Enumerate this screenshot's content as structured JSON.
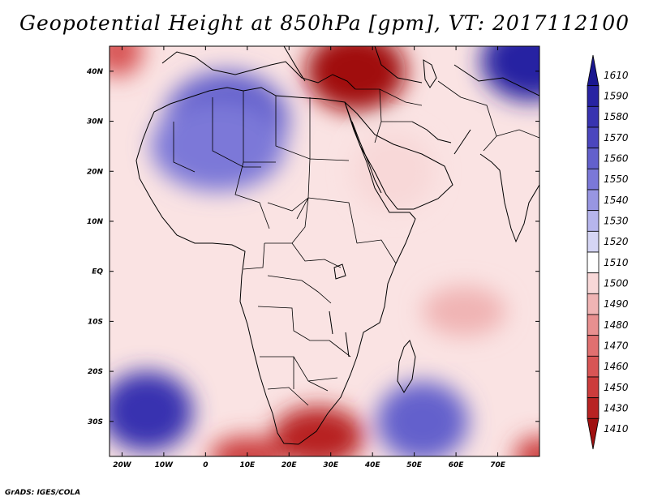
{
  "title": "Geopotential Height at 850hPa [gpm], VT: 2017112100",
  "footer": "GrADS: IGES/COLA",
  "map": {
    "lon_range": [
      -23,
      80
    ],
    "lat_range": [
      -37,
      45
    ],
    "x_ticks": [
      {
        "lon": -20,
        "label": "20W"
      },
      {
        "lon": -10,
        "label": "10W"
      },
      {
        "lon": 0,
        "label": "0"
      },
      {
        "lon": 10,
        "label": "10E"
      },
      {
        "lon": 20,
        "label": "20E"
      },
      {
        "lon": 30,
        "label": "30E"
      },
      {
        "lon": 40,
        "label": "40E"
      },
      {
        "lon": 50,
        "label": "50E"
      },
      {
        "lon": 60,
        "label": "60E"
      },
      {
        "lon": 70,
        "label": "70E"
      }
    ],
    "y_ticks": [
      {
        "lat": 40,
        "label": "40N"
      },
      {
        "lat": 30,
        "label": "30N"
      },
      {
        "lat": 20,
        "label": "20N"
      },
      {
        "lat": 10,
        "label": "10N"
      },
      {
        "lat": 0,
        "label": "EQ"
      },
      {
        "lat": -10,
        "label": "10S"
      },
      {
        "lat": -20,
        "label": "20S"
      },
      {
        "lat": -30,
        "label": "30S"
      }
    ],
    "field_features": [
      {
        "name": "low-east-mediterranean",
        "lon": 36,
        "lat": 40,
        "value": 1410,
        "rx": 12,
        "ry": 8
      },
      {
        "name": "low-northwest-corner",
        "lon": -21,
        "lat": 44,
        "value": 1460,
        "rx": 6,
        "ry": 5
      },
      {
        "name": "high-north-africa",
        "lon": 5,
        "lat": 30,
        "value": 1560,
        "rx": 15,
        "ry": 10
      },
      {
        "name": "high-sahara",
        "lon": 3,
        "lat": 25,
        "value": 1550,
        "rx": 16,
        "ry": 9
      },
      {
        "name": "high-northeast-corner",
        "lon": 78,
        "lat": 42,
        "value": 1590,
        "rx": 12,
        "ry": 8
      },
      {
        "name": "high-south-atlantic",
        "lon": -14,
        "lat": -28,
        "value": 1580,
        "rx": 11,
        "ry": 8
      },
      {
        "name": "high-south-indian",
        "lon": 52,
        "lat": -30,
        "value": 1560,
        "rx": 11,
        "ry": 8
      },
      {
        "name": "low-southern-africa",
        "lon": 27,
        "lat": -33,
        "value": 1430,
        "rx": 11,
        "ry": 6
      },
      {
        "name": "low-southwest-corner",
        "lon": 10,
        "lat": -37,
        "value": 1450,
        "rx": 9,
        "ry": 4
      },
      {
        "name": "low-southeast-corner",
        "lon": 80,
        "lat": -37,
        "value": 1450,
        "rx": 6,
        "ry": 4
      },
      {
        "name": "low-indian-ocean",
        "lon": 62,
        "lat": -8,
        "value": 1490,
        "rx": 10,
        "ry": 5
      },
      {
        "name": "low-arabia",
        "lon": 45,
        "lat": 20,
        "value": 1500,
        "rx": 10,
        "ry": 8
      }
    ]
  },
  "colorbar": {
    "levels": [
      {
        "label": "1610",
        "color": "#1a1790"
      },
      {
        "label": "1590",
        "color": "#2823a2"
      },
      {
        "label": "1580",
        "color": "#3833b0"
      },
      {
        "label": "1570",
        "color": "#4b46be"
      },
      {
        "label": "1560",
        "color": "#6360cc"
      },
      {
        "label": "1550",
        "color": "#7b78d8"
      },
      {
        "label": "1540",
        "color": "#9896e2"
      },
      {
        "label": "1530",
        "color": "#b6b5ec"
      },
      {
        "label": "1520",
        "color": "#d5d5f4"
      },
      {
        "label": "1510",
        "color": "#ffffff"
      },
      {
        "label": "1500",
        "color": "#f8d8d8"
      },
      {
        "label": "1490",
        "color": "#f0b4b4"
      },
      {
        "label": "1480",
        "color": "#e89090"
      },
      {
        "label": "1470",
        "color": "#e07070"
      },
      {
        "label": "1460",
        "color": "#d85555"
      },
      {
        "label": "1450",
        "color": "#cc3c3c"
      },
      {
        "label": "1430",
        "color": "#b82323"
      },
      {
        "label": "1410",
        "color": "#a01010"
      }
    ]
  }
}
